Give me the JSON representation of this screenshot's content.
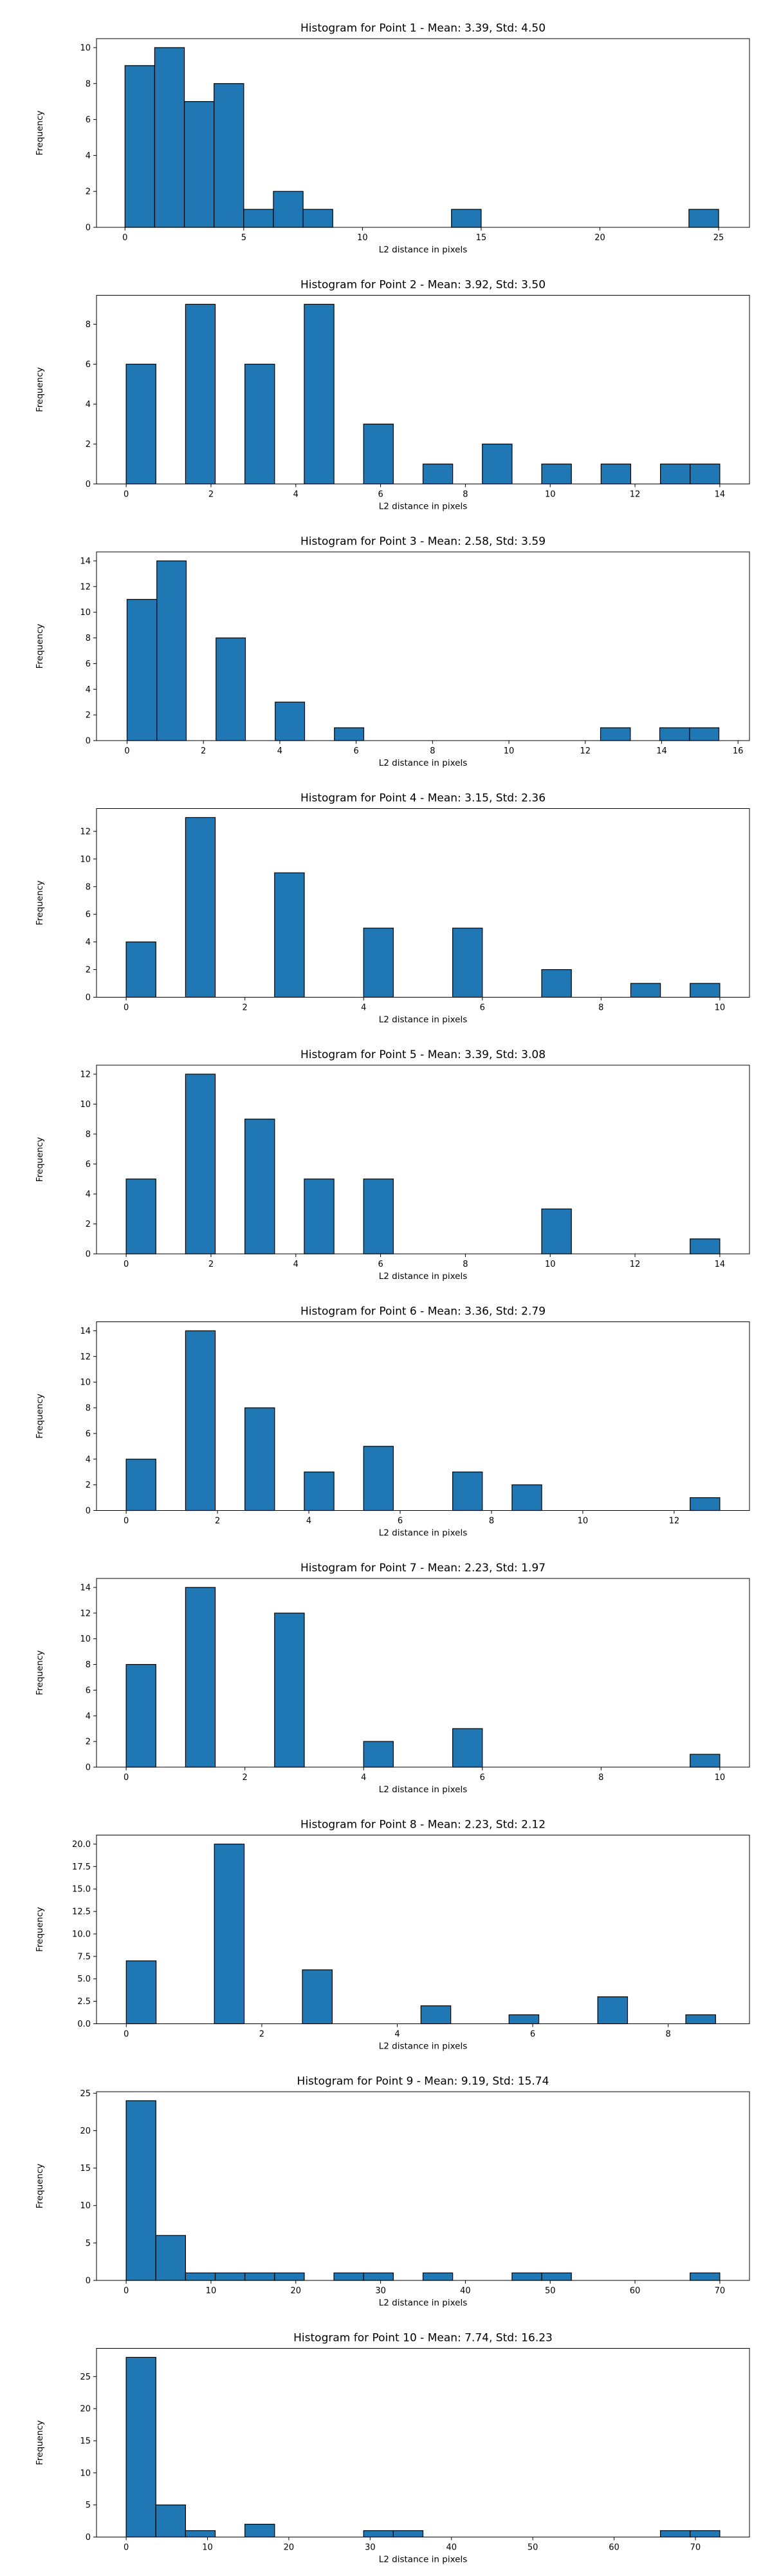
{
  "style": {
    "bar_color": "#1f77b4",
    "edge_color": "#000000"
  },
  "chart_data": [
    {
      "type": "bar",
      "title": "Histogram for Point 1 - Mean: 3.39, Std: 4.50",
      "xlabel": "L2 distance in pixels",
      "ylabel": "Frequency",
      "xlim": [
        -1.2,
        26.3
      ],
      "ylim": [
        0,
        10.5
      ],
      "xticks": [
        0,
        5,
        10,
        15,
        20,
        25
      ],
      "yticks": [
        0,
        2,
        4,
        6,
        8,
        10
      ],
      "bins": [
        {
          "x0": 0.0,
          "x1": 1.25,
          "count": 9
        },
        {
          "x0": 1.25,
          "x1": 2.5,
          "count": 10
        },
        {
          "x0": 2.5,
          "x1": 3.75,
          "count": 7
        },
        {
          "x0": 3.75,
          "x1": 5.0,
          "count": 8
        },
        {
          "x0": 5.0,
          "x1": 6.25,
          "count": 1
        },
        {
          "x0": 6.25,
          "x1": 7.5,
          "count": 2
        },
        {
          "x0": 7.5,
          "x1": 8.75,
          "count": 1
        },
        {
          "x0": 13.75,
          "x1": 15.0,
          "count": 1
        },
        {
          "x0": 23.75,
          "x1": 25.0,
          "count": 1
        }
      ]
    },
    {
      "type": "bar",
      "title": "Histogram for Point 2 - Mean: 3.92, Std: 3.50",
      "xlabel": "L2 distance in pixels",
      "ylabel": "Frequency",
      "xlim": [
        -0.7,
        14.7
      ],
      "ylim": [
        0,
        9.45
      ],
      "xticks": [
        0,
        2,
        4,
        6,
        8,
        10,
        12,
        14
      ],
      "yticks": [
        0,
        2,
        4,
        6,
        8
      ],
      "bins": [
        {
          "x0": 0.0,
          "x1": 0.7,
          "count": 6
        },
        {
          "x0": 1.4,
          "x1": 2.1,
          "count": 9
        },
        {
          "x0": 2.8,
          "x1": 3.5,
          "count": 6
        },
        {
          "x0": 4.2,
          "x1": 4.9,
          "count": 9
        },
        {
          "x0": 5.6,
          "x1": 6.3,
          "count": 3
        },
        {
          "x0": 7.0,
          "x1": 7.7,
          "count": 1
        },
        {
          "x0": 8.4,
          "x1": 9.1,
          "count": 2
        },
        {
          "x0": 9.8,
          "x1": 10.5,
          "count": 1
        },
        {
          "x0": 11.2,
          "x1": 11.9,
          "count": 1
        },
        {
          "x0": 12.6,
          "x1": 13.3,
          "count": 1
        },
        {
          "x0": 13.3,
          "x1": 14.0,
          "count": 1
        }
      ]
    },
    {
      "type": "bar",
      "title": "Histogram for Point 3 - Mean: 2.58, Std: 3.59",
      "xlabel": "L2 distance in pixels",
      "ylabel": "Frequency",
      "xlim": [
        -0.8,
        16.3
      ],
      "ylim": [
        0,
        14.7
      ],
      "xticks": [
        0,
        2,
        4,
        6,
        8,
        10,
        12,
        14,
        16
      ],
      "yticks": [
        0,
        2,
        4,
        6,
        8,
        10,
        12,
        14
      ],
      "bins": [
        {
          "x0": 0.0,
          "x1": 0.78,
          "count": 11
        },
        {
          "x0": 0.78,
          "x1": 1.55,
          "count": 14
        },
        {
          "x0": 2.33,
          "x1": 3.1,
          "count": 8
        },
        {
          "x0": 3.88,
          "x1": 4.65,
          "count": 3
        },
        {
          "x0": 5.43,
          "x1": 6.2,
          "count": 1
        },
        {
          "x0": 12.4,
          "x1": 13.18,
          "count": 1
        },
        {
          "x0": 13.95,
          "x1": 14.73,
          "count": 1
        },
        {
          "x0": 14.73,
          "x1": 15.5,
          "count": 1
        }
      ]
    },
    {
      "type": "bar",
      "title": "Histogram for Point 4 - Mean: 3.15, Std: 2.36",
      "xlabel": "L2 distance in pixels",
      "ylabel": "Frequency",
      "xlim": [
        -0.5,
        10.5
      ],
      "ylim": [
        0,
        13.65
      ],
      "xticks": [
        0,
        2,
        4,
        6,
        8,
        10
      ],
      "yticks": [
        0,
        2,
        4,
        6,
        8,
        10,
        12
      ],
      "bins": [
        {
          "x0": 0.0,
          "x1": 0.5,
          "count": 4
        },
        {
          "x0": 1.0,
          "x1": 1.5,
          "count": 13
        },
        {
          "x0": 2.5,
          "x1": 3.0,
          "count": 9
        },
        {
          "x0": 4.0,
          "x1": 4.5,
          "count": 5
        },
        {
          "x0": 5.5,
          "x1": 6.0,
          "count": 5
        },
        {
          "x0": 7.0,
          "x1": 7.5,
          "count": 2
        },
        {
          "x0": 8.5,
          "x1": 9.0,
          "count": 1
        },
        {
          "x0": 9.5,
          "x1": 10.0,
          "count": 1
        }
      ]
    },
    {
      "type": "bar",
      "title": "Histogram for Point 5 - Mean: 3.39, Std: 3.08",
      "xlabel": "L2 distance in pixels",
      "ylabel": "Frequency",
      "xlim": [
        -0.7,
        14.7
      ],
      "ylim": [
        0,
        12.6
      ],
      "xticks": [
        0,
        2,
        4,
        6,
        8,
        10,
        12,
        14
      ],
      "yticks": [
        0,
        2,
        4,
        6,
        8,
        10,
        12
      ],
      "bins": [
        {
          "x0": 0.0,
          "x1": 0.7,
          "count": 5
        },
        {
          "x0": 1.4,
          "x1": 2.1,
          "count": 12
        },
        {
          "x0": 2.8,
          "x1": 3.5,
          "count": 9
        },
        {
          "x0": 4.2,
          "x1": 4.9,
          "count": 5
        },
        {
          "x0": 5.6,
          "x1": 6.3,
          "count": 5
        },
        {
          "x0": 9.8,
          "x1": 10.5,
          "count": 3
        },
        {
          "x0": 13.3,
          "x1": 14.0,
          "count": 1
        }
      ]
    },
    {
      "type": "bar",
      "title": "Histogram for Point 6 - Mean: 3.36, Std: 2.79",
      "xlabel": "L2 distance in pixels",
      "ylabel": "Frequency",
      "xlim": [
        -0.65,
        13.65
      ],
      "ylim": [
        0,
        14.7
      ],
      "xticks": [
        0,
        2,
        4,
        6,
        8,
        10,
        12
      ],
      "yticks": [
        0,
        2,
        4,
        6,
        8,
        10,
        12,
        14
      ],
      "bins": [
        {
          "x0": 0.0,
          "x1": 0.65,
          "count": 4
        },
        {
          "x0": 1.3,
          "x1": 1.95,
          "count": 14
        },
        {
          "x0": 2.6,
          "x1": 3.25,
          "count": 8
        },
        {
          "x0": 3.9,
          "x1": 4.55,
          "count": 3
        },
        {
          "x0": 5.2,
          "x1": 5.85,
          "count": 5
        },
        {
          "x0": 7.15,
          "x1": 7.8,
          "count": 3
        },
        {
          "x0": 8.45,
          "x1": 9.1,
          "count": 2
        },
        {
          "x0": 12.35,
          "x1": 13.0,
          "count": 1
        }
      ]
    },
    {
      "type": "bar",
      "title": "Histogram for Point 7 - Mean: 2.23, Std: 1.97",
      "xlabel": "L2 distance in pixels",
      "ylabel": "Frequency",
      "xlim": [
        -0.5,
        10.5
      ],
      "ylim": [
        0,
        14.7
      ],
      "xticks": [
        0,
        2,
        4,
        6,
        8,
        10
      ],
      "yticks": [
        0,
        2,
        4,
        6,
        8,
        10,
        12,
        14
      ],
      "bins": [
        {
          "x0": 0.0,
          "x1": 0.5,
          "count": 8
        },
        {
          "x0": 1.0,
          "x1": 1.5,
          "count": 14
        },
        {
          "x0": 2.5,
          "x1": 3.0,
          "count": 12
        },
        {
          "x0": 4.0,
          "x1": 4.5,
          "count": 2
        },
        {
          "x0": 5.5,
          "x1": 6.0,
          "count": 3
        },
        {
          "x0": 9.5,
          "x1": 10.0,
          "count": 1
        }
      ]
    },
    {
      "type": "bar",
      "title": "Histogram for Point 8 - Mean: 2.23, Std: 2.12",
      "xlabel": "L2 distance in pixels",
      "ylabel": "Frequency",
      "xlim": [
        -0.44,
        9.2
      ],
      "ylim": [
        0,
        21
      ],
      "xticks": [
        0,
        2,
        4,
        6,
        8
      ],
      "yticks": [
        "0.0",
        "2.5",
        "5.0",
        "7.5",
        "10.0",
        "12.5",
        "15.0",
        "17.5",
        "20.0"
      ],
      "bins": [
        {
          "x0": 0.0,
          "x1": 0.44,
          "count": 7
        },
        {
          "x0": 1.3,
          "x1": 1.74,
          "count": 20
        },
        {
          "x0": 2.6,
          "x1": 3.04,
          "count": 6
        },
        {
          "x0": 4.35,
          "x1": 4.79,
          "count": 2
        },
        {
          "x0": 5.65,
          "x1": 6.09,
          "count": 1
        },
        {
          "x0": 6.96,
          "x1": 7.4,
          "count": 3
        },
        {
          "x0": 8.26,
          "x1": 8.7,
          "count": 1
        }
      ]
    },
    {
      "type": "bar",
      "title": "Histogram for Point 9 - Mean: 9.19, Std: 15.74",
      "xlabel": "L2 distance in pixels",
      "ylabel": "Frequency",
      "xlim": [
        -3.5,
        73.5
      ],
      "ylim": [
        0,
        25.2
      ],
      "xticks": [
        0,
        10,
        20,
        30,
        40,
        50,
        60,
        70
      ],
      "yticks": [
        0,
        5,
        10,
        15,
        20,
        25
      ],
      "bins": [
        {
          "x0": 0.0,
          "x1": 3.5,
          "count": 24
        },
        {
          "x0": 3.5,
          "x1": 7.0,
          "count": 6
        },
        {
          "x0": 7.0,
          "x1": 10.5,
          "count": 1
        },
        {
          "x0": 10.5,
          "x1": 14.0,
          "count": 1
        },
        {
          "x0": 14.0,
          "x1": 17.5,
          "count": 1
        },
        {
          "x0": 17.5,
          "x1": 21.0,
          "count": 1
        },
        {
          "x0": 24.5,
          "x1": 28.0,
          "count": 1
        },
        {
          "x0": 28.0,
          "x1": 31.5,
          "count": 1
        },
        {
          "x0": 35.0,
          "x1": 38.5,
          "count": 1
        },
        {
          "x0": 45.5,
          "x1": 49.0,
          "count": 1
        },
        {
          "x0": 49.0,
          "x1": 52.5,
          "count": 1
        },
        {
          "x0": 66.5,
          "x1": 70.0,
          "count": 1
        }
      ]
    },
    {
      "type": "bar",
      "title": "Histogram for Point 10 - Mean: 7.74, Std: 16.23",
      "xlabel": "L2 distance in pixels",
      "ylabel": "Frequency",
      "xlim": [
        -3.65,
        76.65
      ],
      "ylim": [
        0,
        29.4
      ],
      "xticks": [
        0,
        10,
        20,
        30,
        40,
        50,
        60,
        70
      ],
      "yticks": [
        0,
        5,
        10,
        15,
        20,
        25
      ],
      "bins": [
        {
          "x0": 0.0,
          "x1": 3.65,
          "count": 28
        },
        {
          "x0": 3.65,
          "x1": 7.3,
          "count": 5
        },
        {
          "x0": 7.3,
          "x1": 10.95,
          "count": 1
        },
        {
          "x0": 14.6,
          "x1": 18.25,
          "count": 2
        },
        {
          "x0": 29.2,
          "x1": 32.85,
          "count": 1
        },
        {
          "x0": 32.85,
          "x1": 36.5,
          "count": 1
        },
        {
          "x0": 65.7,
          "x1": 69.35,
          "count": 1
        },
        {
          "x0": 69.35,
          "x1": 73.0,
          "count": 1
        }
      ]
    }
  ]
}
